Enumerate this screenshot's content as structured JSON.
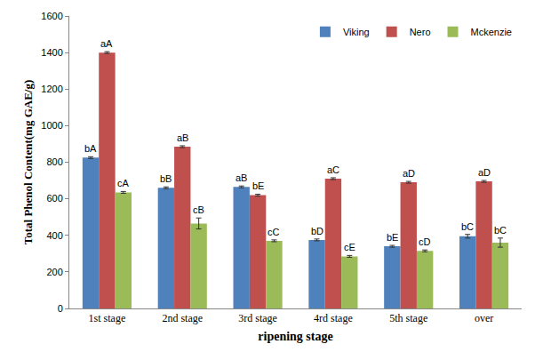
{
  "chart_data": {
    "type": "bar",
    "xlabel": "ripening stage",
    "ylabel": "Total Phenol Content(mg GAE/g)",
    "categories": [
      "1st stage",
      "2nd stage",
      "3rd stage",
      "4rd stage",
      "5th stage",
      "over"
    ],
    "series": [
      {
        "name": "Viking",
        "color": "#4f81bd",
        "values": [
          825,
          660,
          665,
          375,
          340,
          395
        ],
        "errors": [
          5,
          5,
          5,
          5,
          5,
          10
        ],
        "annotations": [
          "bA",
          "bB",
          "aB",
          "bD",
          "bE",
          "bC"
        ]
      },
      {
        "name": "Nero",
        "color": "#c0504d",
        "values": [
          1400,
          885,
          620,
          710,
          690,
          695
        ],
        "errors": [
          5,
          5,
          5,
          5,
          5,
          5
        ],
        "annotations": [
          "aA",
          "aB",
          "bE",
          "aC",
          "aD",
          "aD"
        ]
      },
      {
        "name": "Mckenzie",
        "color": "#9bbb59",
        "values": [
          635,
          465,
          370,
          285,
          315,
          360
        ],
        "errors": [
          5,
          30,
          5,
          5,
          5,
          25
        ],
        "annotations": [
          "cA",
          "cB",
          "cC",
          "cE",
          "cD",
          "bC"
        ]
      }
    ],
    "ylim": [
      0,
      1600
    ],
    "yticks": [
      0,
      200,
      400,
      600,
      800,
      1000,
      1200,
      1400,
      1600
    ],
    "legend": "upper right",
    "grid": false
  }
}
